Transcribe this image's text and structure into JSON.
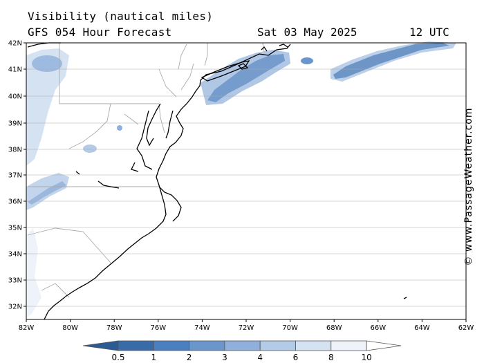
{
  "header": {
    "title": "Visibility (nautical miles)",
    "subtitle": "GFS 054 Hour Forecast",
    "date": "Sat 03 May 2025",
    "time": "12 UTC"
  },
  "credit": "© www.PassageWeather.com",
  "map": {
    "lat_labels": [
      "42N",
      "41N",
      "40N",
      "39N",
      "38N",
      "37N",
      "36N",
      "35N",
      "34N",
      "33N",
      "32N"
    ],
    "lon_labels": [
      "82W",
      "80W",
      "78W",
      "76W",
      "74W",
      "72W",
      "70W",
      "68W",
      "66W",
      "64W",
      "62W"
    ],
    "land_color": "#ffffff",
    "coast_color": "#000000",
    "border_color": "#aaaaaa"
  },
  "legend": {
    "ticks": [
      "0.5",
      "1",
      "2",
      "3",
      "4",
      "6",
      "8",
      "10"
    ],
    "colors": [
      "#3a6ba9",
      "#4c7fbf",
      "#6b96cc",
      "#8fb0db",
      "#b4cbe8",
      "#d5e2f2",
      "#eef3fa",
      "#ffffff"
    ]
  }
}
